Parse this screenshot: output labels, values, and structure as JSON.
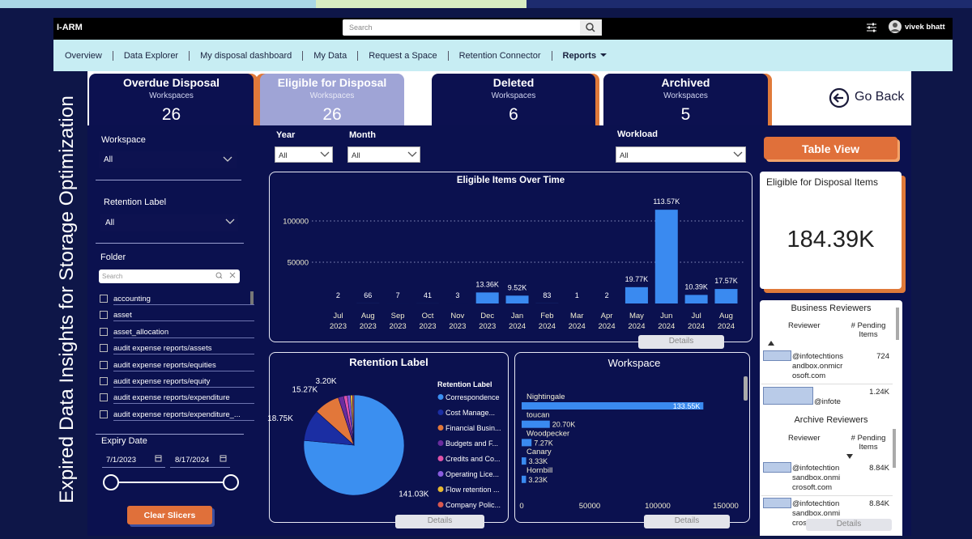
{
  "top_bar": {
    "app_name": "I-ARM",
    "search_placeholder": "Search",
    "user_name": "vivek bhatt"
  },
  "side_title": "Expired Data Insights for Storage Optimization",
  "nav": [
    "Overview",
    "Data Explorer",
    "My disposal dashboard",
    "My Data",
    "Request a Space",
    "Retention Connector",
    "Reports"
  ],
  "tiles": [
    {
      "title": "Overdue Disposal",
      "subtitle": "Workspaces",
      "count": 26
    },
    {
      "title": "Eligible for Disposal",
      "subtitle": "Workspaces",
      "count": 26
    },
    {
      "title": "Deleted",
      "subtitle": "Workspaces",
      "count": 6
    },
    {
      "title": "Archived",
      "subtitle": "Workspaces",
      "count": 5
    }
  ],
  "go_back": "Go Back",
  "slicers": {
    "workspace": {
      "label": "Workspace",
      "value": "All"
    },
    "retention_label": {
      "label": "Retention Label",
      "value": "All"
    },
    "folder": {
      "label": "Folder",
      "search_placeholder": "Search",
      "items": [
        "accounting",
        "asset",
        "asset_allocation",
        "audit expense reports/assets",
        "audit expense reports/equities",
        "audit expense reports/equity",
        "audit expense reports/expenditure",
        "audit expense reports/expenditure_..."
      ]
    },
    "expiry_date": {
      "label": "Expiry Date",
      "start": "7/1/2023",
      "end": "8/17/2024"
    },
    "clear_button": "Clear Slicers"
  },
  "filters": [
    {
      "label": "Year",
      "value": "All"
    },
    {
      "label": "Month",
      "value": "All"
    },
    {
      "label": "Workload",
      "value": "All"
    }
  ],
  "table_view_button": "Table View",
  "card": {
    "title": "Eligible for Disposal Items",
    "value": "184.39K"
  },
  "details_button": "Details",
  "chart_data": [
    {
      "type": "bar",
      "title": "Eligible Items Over Time",
      "categories": [
        "Jul 2023",
        "Aug 2023",
        "Sep 2023",
        "Oct 2023",
        "Nov 2023",
        "Dec 2023",
        "Jan 2024",
        "Feb 2024",
        "Mar 2024",
        "Apr 2024",
        "May 2024",
        "Jun 2024",
        "Jul 2024",
        "Aug 2024"
      ],
      "values": [
        2,
        66,
        7,
        41,
        3,
        13360,
        9520,
        83,
        1,
        2,
        19770,
        113570,
        10390,
        17570
      ],
      "value_labels": [
        "2",
        "66",
        "7",
        "41",
        "3",
        "13.36K",
        "9.52K",
        "83",
        "1",
        "2",
        "19.77K",
        "113.57K",
        "10.39K",
        "17.57K"
      ],
      "color": "#3a8af0",
      "ylim": [
        0,
        140000
      ],
      "yticks": [
        50000,
        100000
      ],
      "grid": true
    },
    {
      "type": "pie",
      "title": "Retention Label",
      "legend_title": "Retention Label",
      "categories": [
        "Correspondence",
        "Cost Manage...",
        "Financial Busin...",
        "Budgets and F...",
        "Credits and Co...",
        "Operating Lice...",
        "Flow retention ...",
        "Company Polic..."
      ],
      "values": [
        141030,
        18750,
        15270,
        3200,
        2200,
        1800,
        1300,
        840
      ],
      "value_labels": [
        "141.03K",
        "18.75K",
        "15.27K",
        "3.20K",
        null,
        null,
        null,
        null
      ],
      "colors": [
        "#3b8ff0",
        "#1b2ea3",
        "#e2773a",
        "#6a2c9e",
        "#e052a8",
        "#8a5ce0",
        "#e8b931",
        "#d9584f"
      ]
    },
    {
      "type": "hbar",
      "title": "Workspace",
      "categories": [
        "Nightingale",
        "toucan",
        "Woodpecker",
        "Canary",
        "Hornbill"
      ],
      "values": [
        133550,
        20700,
        7270,
        3330,
        3230
      ],
      "value_labels": [
        "133.55K",
        "20.70K",
        "7.27K",
        "3.33K",
        "3.23K"
      ],
      "color": "#3a8af0",
      "xlim": [
        0,
        158000
      ],
      "xticks": [
        0,
        50000,
        100000,
        150000
      ]
    }
  ],
  "business_reviewers": {
    "title": "Business Reviewers",
    "columns": [
      "Reviewer",
      "# Pending Items"
    ],
    "rows": [
      [
        "@infotechtionsandbox.onmicrosoft.com",
        "724"
      ],
      [
        "@infote",
        "1.24K"
      ]
    ]
  },
  "archive_reviewers": {
    "title": "Archive Reviewers",
    "columns": [
      "Reviewer",
      "# Pending Items"
    ],
    "rows": [
      [
        "@infotechtionsandbox.onmicrosoft.com",
        "8.84K"
      ],
      [
        "@infotechtionsandbox.onmicros",
        "8.84K"
      ]
    ]
  }
}
